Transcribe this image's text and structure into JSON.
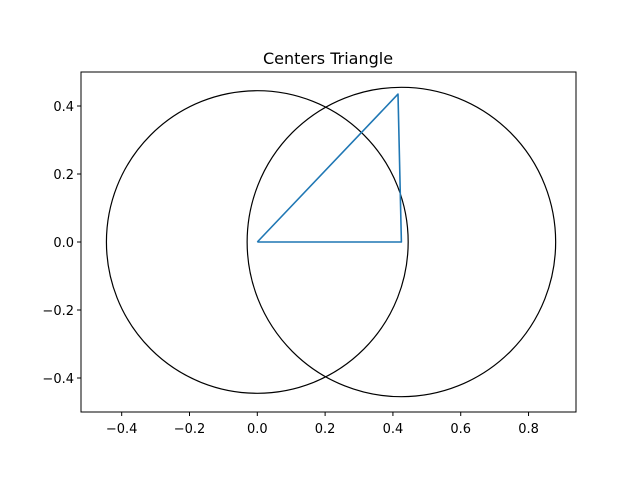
{
  "chart_data": {
    "type": "line",
    "title": "Centers Triangle",
    "xlabel": "",
    "ylabel": "",
    "xlim": [
      -0.52,
      0.94
    ],
    "ylim": [
      -0.5,
      0.5
    ],
    "grid": false,
    "aspect": "equal",
    "x_ticks": [
      -0.4,
      -0.2,
      0.0,
      0.2,
      0.4,
      0.6,
      0.8
    ],
    "x_tick_labels": [
      "−0.4",
      "−0.2",
      "0.0",
      "0.2",
      "0.4",
      "0.6",
      "0.8"
    ],
    "y_ticks": [
      -0.4,
      -0.2,
      0.0,
      0.2,
      0.4
    ],
    "y_tick_labels": [
      "−0.4",
      "−0.2",
      "0.0",
      "0.2",
      "0.4"
    ],
    "circles": [
      {
        "name": "circle-1",
        "center": [
          0.0,
          0.0
        ],
        "radius": 0.445,
        "color": "#000000"
      },
      {
        "name": "circle-2",
        "center": [
          0.425,
          0.0
        ],
        "radius": 0.455,
        "color": "#000000"
      }
    ],
    "series": [
      {
        "name": "triangle",
        "color": "#1f77b4",
        "x": [
          0.0,
          0.415,
          0.425,
          0.0
        ],
        "y": [
          0.0,
          0.435,
          0.0,
          0.0
        ]
      }
    ]
  }
}
